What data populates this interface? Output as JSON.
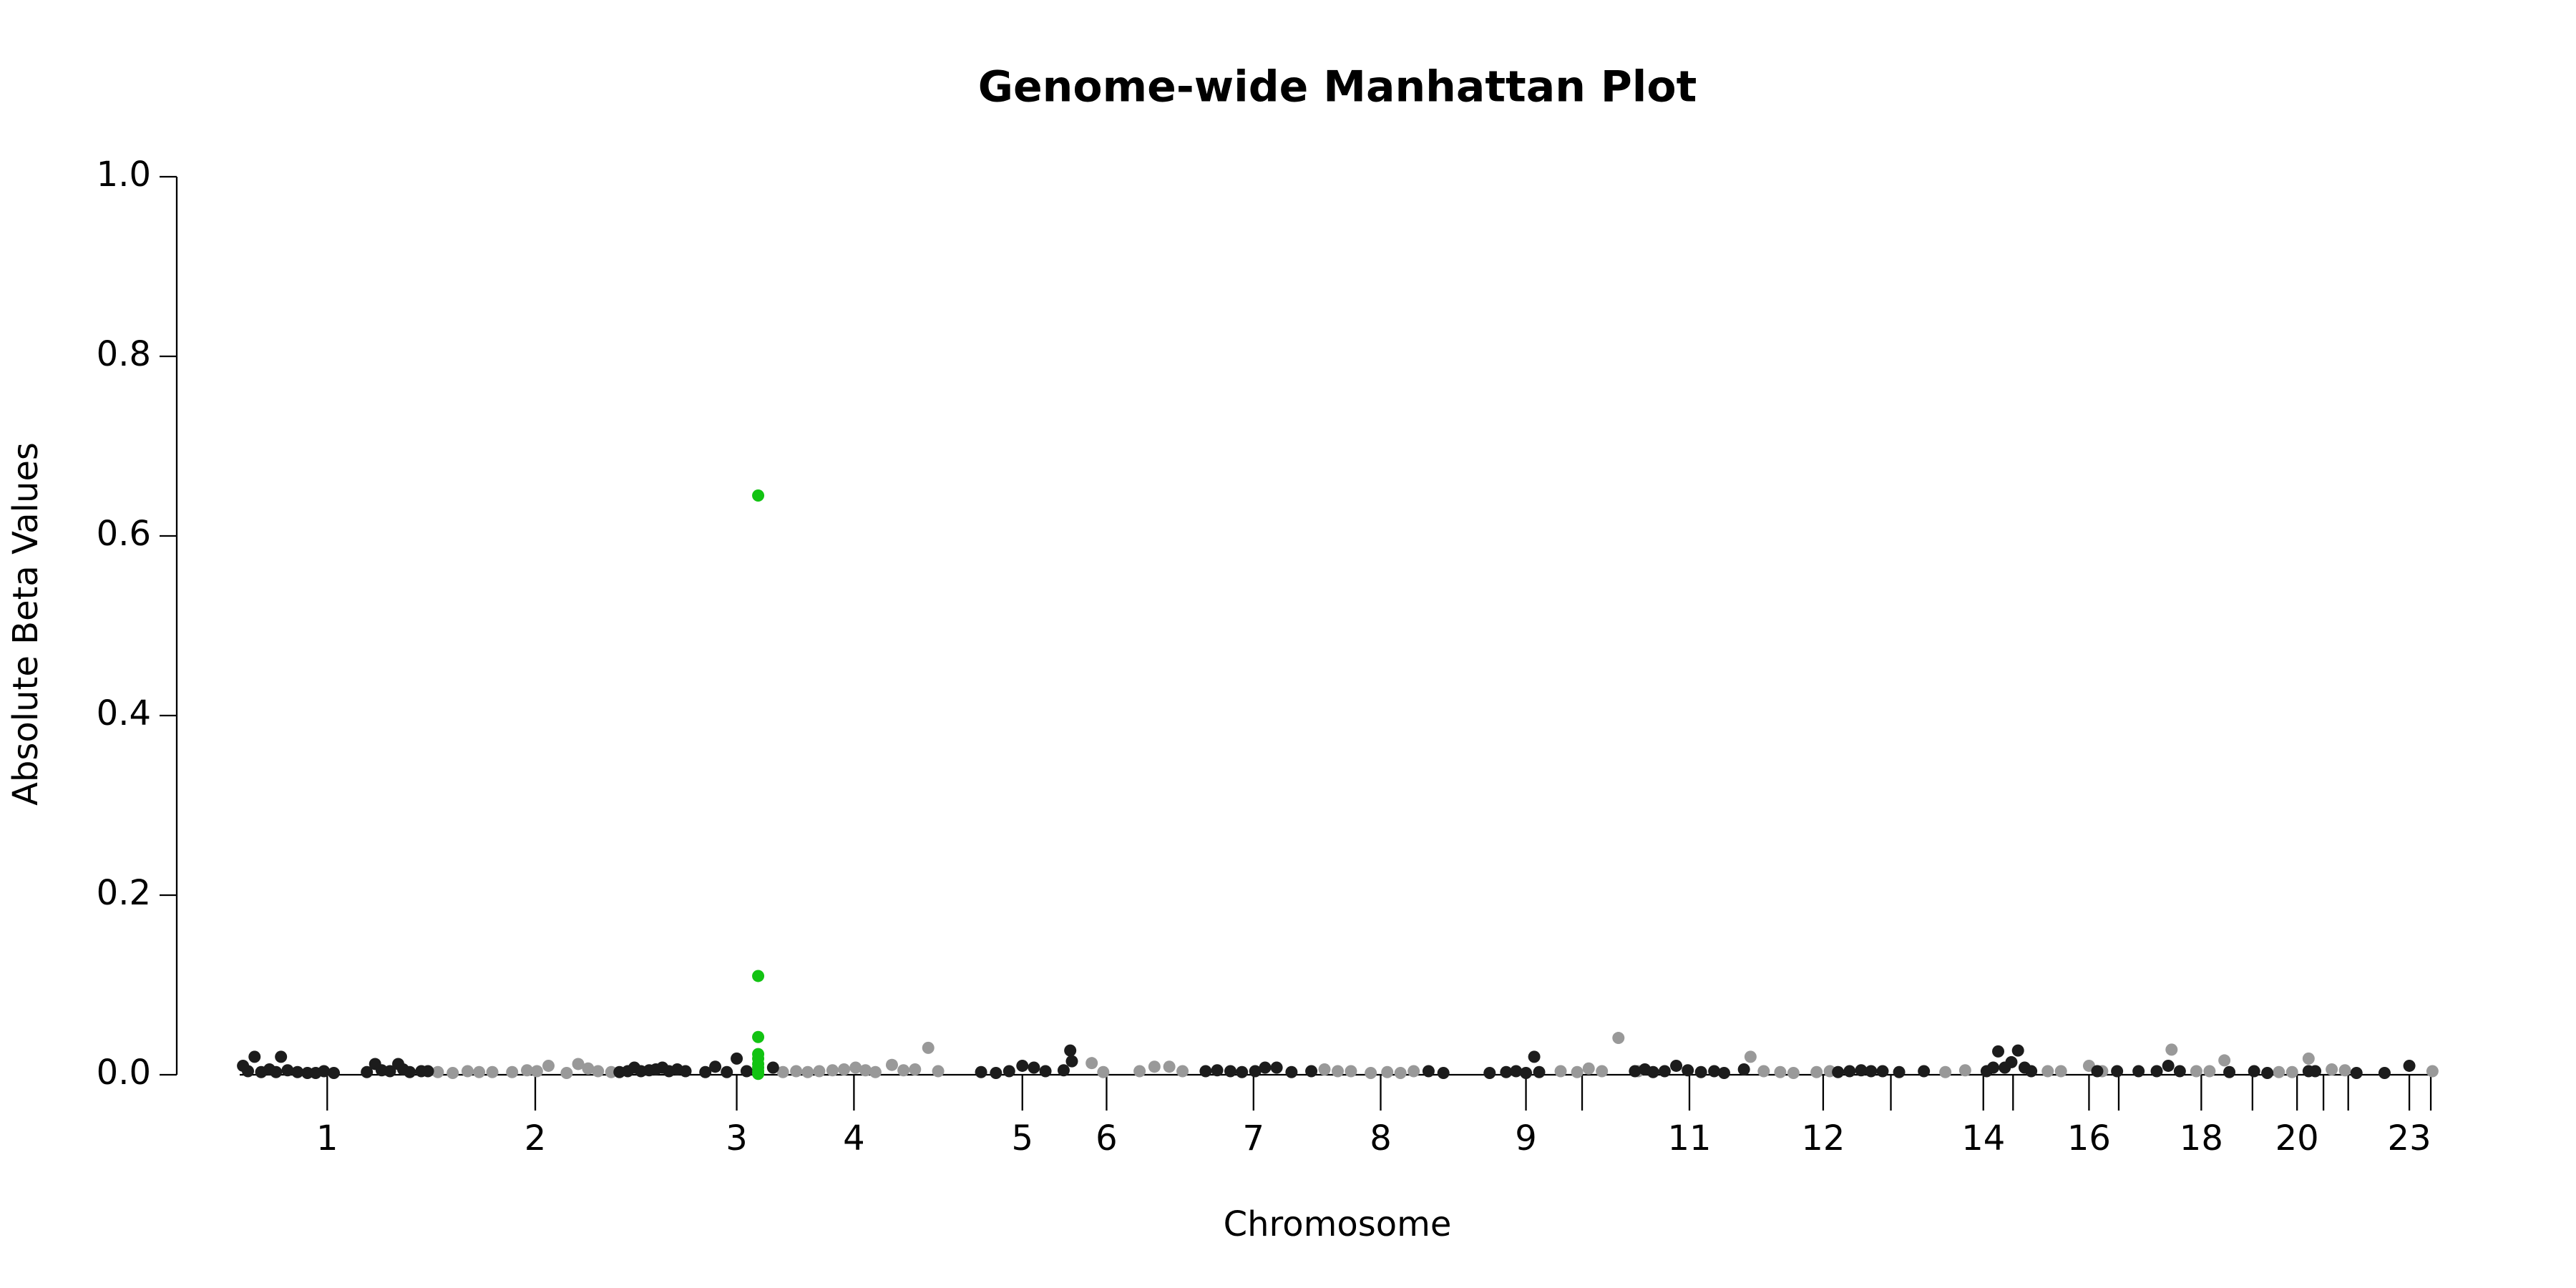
{
  "chart_data": {
    "type": "scatter",
    "title": "Genome-wide Manhattan Plot",
    "x_label": "Chromosome",
    "y_label": "Absolute Beta Values",
    "xlim": [
      145,
      1475
    ],
    "ylim": [
      0,
      1
    ],
    "yticks": [
      {
        "value": 0,
        "label": "0.0"
      },
      {
        "value": 0.2,
        "label": "0.2"
      },
      {
        "value": 0.4,
        "label": "0.4"
      },
      {
        "value": 0.6,
        "label": "0.6"
      },
      {
        "value": 0.8,
        "label": "0.8"
      },
      {
        "value": 1,
        "label": "1.0"
      }
    ],
    "xticks": [
      {
        "value": 198,
        "label": "1"
      },
      {
        "value": 324,
        "label": "2"
      },
      {
        "value": 446,
        "label": "3"
      },
      {
        "value": 517,
        "label": "4"
      },
      {
        "value": 619,
        "label": "5"
      },
      {
        "value": 670,
        "label": "6"
      },
      {
        "value": 759,
        "label": "7"
      },
      {
        "value": 836,
        "label": "8"
      },
      {
        "value": 924,
        "label": "9"
      },
      {
        "value": 958,
        "label": null
      },
      {
        "value": 1023,
        "label": "11"
      },
      {
        "value": 1104,
        "label": "12"
      },
      {
        "value": 1145,
        "label": null
      },
      {
        "value": 1201,
        "label": "14"
      },
      {
        "value": 1219,
        "label": null
      },
      {
        "value": 1265,
        "label": "16"
      },
      {
        "value": 1283,
        "label": null
      },
      {
        "value": 1333,
        "label": "18"
      },
      {
        "value": 1364,
        "label": null
      },
      {
        "value": 1391,
        "label": "20"
      },
      {
        "value": 1407,
        "label": null
      },
      {
        "value": 1422,
        "label": null
      },
      {
        "value": 1459,
        "label": "23"
      },
      {
        "value": 1472,
        "label": null
      }
    ],
    "series": [
      {
        "color": "#999999",
        "x": [
          265,
          274,
          283,
          290,
          298,
          310,
          319,
          325,
          332,
          343,
          350,
          356,
          362,
          370,
          474,
          482,
          489,
          496,
          504,
          511,
          518,
          524,
          530,
          540,
          547,
          554,
          562,
          568,
          661,
          668,
          690,
          699,
          708,
          716,
          802,
          810,
          818,
          830,
          840,
          848,
          856,
          945,
          955,
          962,
          970,
          980,
          992,
          1060,
          1068,
          1078,
          1086,
          1100,
          1108,
          1178,
          1190,
          1240,
          1248,
          1265,
          1273,
          1315,
          1330,
          1338,
          1347,
          1380,
          1388,
          1398,
          1412,
          1420,
          1473
        ],
        "values": [
          0.003,
          0.002,
          0.004,
          0.003,
          0.003,
          0.003,
          0.005,
          0.004,
          0.01,
          0.002,
          0.012,
          0.007,
          0.004,
          0.003,
          0.003,
          0.004,
          0.003,
          0.004,
          0.005,
          0.006,
          0.008,
          0.005,
          0.003,
          0.011,
          0.005,
          0.006,
          0.03,
          0.004,
          0.013,
          0.003,
          0.004,
          0.009,
          0.009,
          0.004,
          0.006,
          0.004,
          0.004,
          0.002,
          0.003,
          0.002,
          0.004,
          0.004,
          0.003,
          0.007,
          0.004,
          0.041,
          0.004,
          0.02,
          0.004,
          0.003,
          0.002,
          0.003,
          0.004,
          0.003,
          0.005,
          0.004,
          0.004,
          0.01,
          0.004,
          0.028,
          0.004,
          0.004,
          0.016,
          0.003,
          0.003,
          0.018,
          0.006,
          0.005,
          0.004
        ]
      },
      {
        "color": "#1c1c1c",
        "x": [
          147,
          150,
          154,
          158,
          163,
          167,
          170,
          174,
          180,
          186,
          191,
          196,
          202,
          222,
          227,
          231,
          236,
          241,
          244,
          248,
          255,
          259,
          375,
          380,
          384,
          388,
          393,
          397,
          401,
          405,
          410,
          415,
          427,
          433,
          440,
          446,
          452,
          468,
          594,
          603,
          611,
          619,
          626,
          633,
          644,
          648,
          649,
          730,
          737,
          745,
          752,
          760,
          766,
          773,
          782,
          794,
          865,
          874,
          902,
          912,
          918,
          924,
          929,
          932,
          990,
          996,
          1001,
          1008,
          1015,
          1022,
          1030,
          1038,
          1044,
          1056,
          1113,
          1120,
          1127,
          1133,
          1140,
          1150,
          1165,
          1203,
          1207,
          1210,
          1214,
          1218,
          1222,
          1226,
          1230,
          1270,
          1282,
          1295,
          1306,
          1313,
          1320,
          1350,
          1365,
          1373,
          1398,
          1402,
          1427,
          1444,
          1459
        ],
        "values": [
          0.01,
          0.004,
          0.02,
          0.003,
          0.006,
          0.003,
          0.02,
          0.005,
          0.003,
          0.002,
          0.002,
          0.004,
          0.002,
          0.003,
          0.012,
          0.005,
          0.004,
          0.012,
          0.006,
          0.003,
          0.004,
          0.004,
          0.003,
          0.004,
          0.008,
          0.004,
          0.005,
          0.006,
          0.008,
          0.004,
          0.006,
          0.004,
          0.003,
          0.009,
          0.003,
          0.018,
          0.004,
          0.008,
          0.003,
          0.002,
          0.004,
          0.01,
          0.008,
          0.004,
          0.005,
          0.027,
          0.015,
          0.004,
          0.005,
          0.004,
          0.003,
          0.004,
          0.008,
          0.008,
          0.003,
          0.004,
          0.004,
          0.002,
          0.002,
          0.003,
          0.004,
          0.002,
          0.02,
          0.003,
          0.004,
          0.006,
          0.003,
          0.004,
          0.01,
          0.005,
          0.003,
          0.004,
          0.002,
          0.006,
          0.003,
          0.004,
          0.005,
          0.004,
          0.004,
          0.003,
          0.004,
          0.004,
          0.008,
          0.026,
          0.008,
          0.014,
          0.027,
          0.008,
          0.004,
          0.004,
          0.004,
          0.004,
          0.004,
          0.01,
          0.004,
          0.003,
          0.004,
          0.002,
          0.004,
          0.004,
          0.002,
          0.002,
          0.01
        ]
      },
      {
        "color": "#12c312",
        "x": [
          459,
          459,
          459,
          459,
          459,
          459,
          459,
          459,
          459
        ],
        "values": [
          0.645,
          0.11,
          0.042,
          0.023,
          0.018,
          0.012,
          0.008,
          0.004,
          0.001
        ]
      }
    ]
  }
}
